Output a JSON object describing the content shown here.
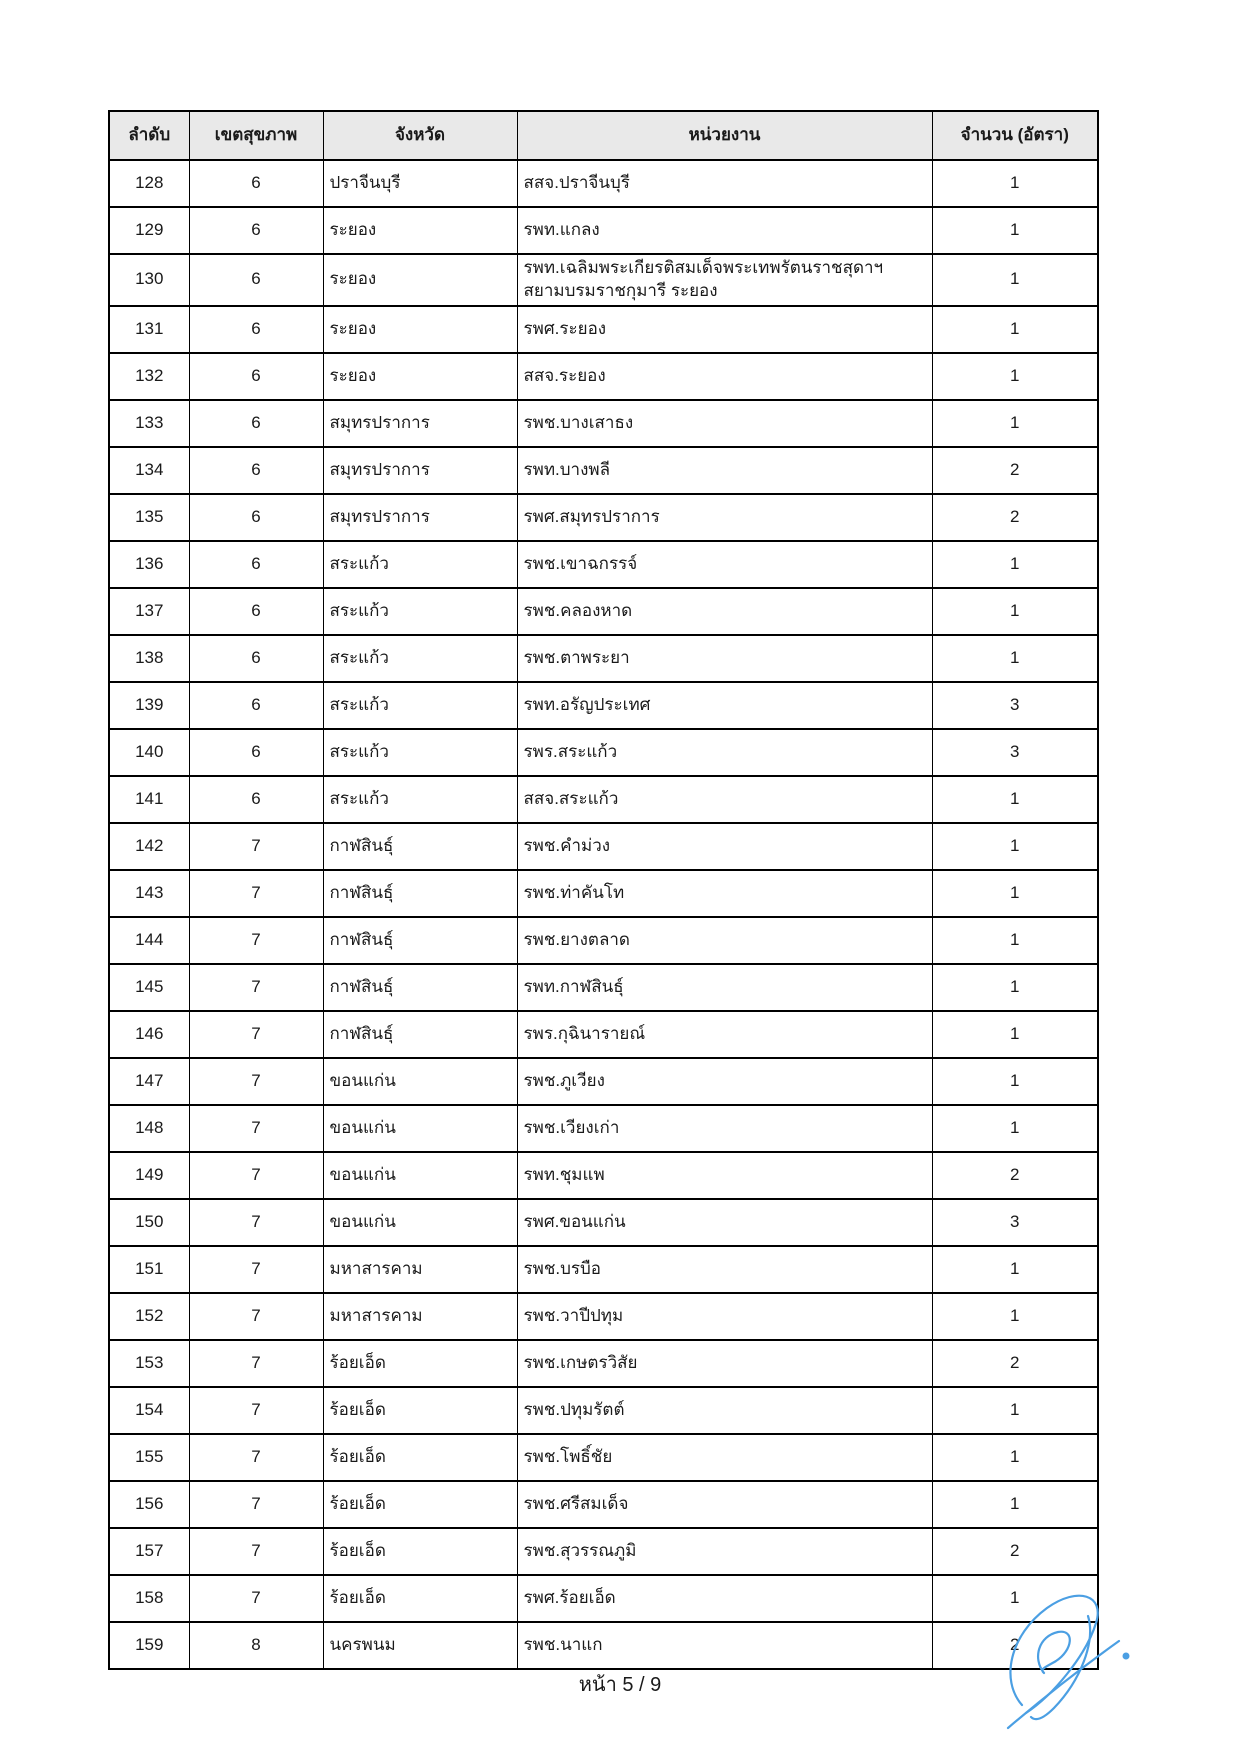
{
  "document": {
    "footer": {
      "page_label": "หน้า 5 / 9"
    }
  },
  "colors": {
    "header_bg": "#e9e9e9",
    "border": "#000000",
    "signature_blue": "#4b9fe3"
  },
  "table": {
    "headers": [
      "ลำดับ",
      "เขตสุขภาพ",
      "จังหวัด",
      "หน่วยงาน",
      "จำนวน (อัตรา)"
    ],
    "rows": [
      [
        "128",
        "6",
        "ปราจีนบุรี",
        "สสจ.ปราจีนบุรี",
        "1"
      ],
      [
        "129",
        "6",
        "ระยอง",
        "รพท.แกลง",
        "1"
      ],
      [
        "130",
        "6",
        "ระยอง",
        "รพท.เฉลิมพระเกียรติสมเด็จพระเทพรัตนราชสุดาฯ สยามบรมราชกุมารี ระยอง",
        "1"
      ],
      [
        "131",
        "6",
        "ระยอง",
        "รพศ.ระยอง",
        "1"
      ],
      [
        "132",
        "6",
        "ระยอง",
        "สสจ.ระยอง",
        "1"
      ],
      [
        "133",
        "6",
        "สมุทรปราการ",
        "รพช.บางเสาธง",
        "1"
      ],
      [
        "134",
        "6",
        "สมุทรปราการ",
        "รพท.บางพลี",
        "2"
      ],
      [
        "135",
        "6",
        "สมุทรปราการ",
        "รพศ.สมุทรปราการ",
        "2"
      ],
      [
        "136",
        "6",
        "สระแก้ว",
        "รพช.เขาฉกรรจ์",
        "1"
      ],
      [
        "137",
        "6",
        "สระแก้ว",
        "รพช.คลองหาด",
        "1"
      ],
      [
        "138",
        "6",
        "สระแก้ว",
        "รพช.ตาพระยา",
        "1"
      ],
      [
        "139",
        "6",
        "สระแก้ว",
        "รพท.อรัญประเทศ",
        "3"
      ],
      [
        "140",
        "6",
        "สระแก้ว",
        "รพร.สระแก้ว",
        "3"
      ],
      [
        "141",
        "6",
        "สระแก้ว",
        "สสจ.สระแก้ว",
        "1"
      ],
      [
        "142",
        "7",
        "กาฬสินธุ์",
        "รพช.คำม่วง",
        "1"
      ],
      [
        "143",
        "7",
        "กาฬสินธุ์",
        "รพช.ท่าคันโท",
        "1"
      ],
      [
        "144",
        "7",
        "กาฬสินธุ์",
        "รพช.ยางตลาด",
        "1"
      ],
      [
        "145",
        "7",
        "กาฬสินธุ์",
        "รพท.กาฬสินธุ์",
        "1"
      ],
      [
        "146",
        "7",
        "กาฬสินธุ์",
        "รพร.กุฉินารายณ์",
        "1"
      ],
      [
        "147",
        "7",
        "ขอนแก่น",
        "รพช.ภูเวียง",
        "1"
      ],
      [
        "148",
        "7",
        "ขอนแก่น",
        "รพช.เวียงเก่า",
        "1"
      ],
      [
        "149",
        "7",
        "ขอนแก่น",
        "รพท.ชุมแพ",
        "2"
      ],
      [
        "150",
        "7",
        "ขอนแก่น",
        "รพศ.ขอนแก่น",
        "3"
      ],
      [
        "151",
        "7",
        "มหาสารคาม",
        "รพช.บรบือ",
        "1"
      ],
      [
        "152",
        "7",
        "มหาสารคาม",
        "รพช.วาปีปทุม",
        "1"
      ],
      [
        "153",
        "7",
        "ร้อยเอ็ด",
        "รพช.เกษตรวิสัย",
        "2"
      ],
      [
        "154",
        "7",
        "ร้อยเอ็ด",
        "รพช.ปทุมรัตต์",
        "1"
      ],
      [
        "155",
        "7",
        "ร้อยเอ็ด",
        "รพช.โพธิ์ชัย",
        "1"
      ],
      [
        "156",
        "7",
        "ร้อยเอ็ด",
        "รพช.ศรีสมเด็จ",
        "1"
      ],
      [
        "157",
        "7",
        "ร้อยเอ็ด",
        "รพช.สุวรรณภูมิ",
        "2"
      ],
      [
        "158",
        "7",
        "ร้อยเอ็ด",
        "รพศ.ร้อยเอ็ด",
        "1"
      ],
      [
        "159",
        "8",
        "นครพนม",
        "รพช.นาแก",
        "2"
      ]
    ]
  }
}
